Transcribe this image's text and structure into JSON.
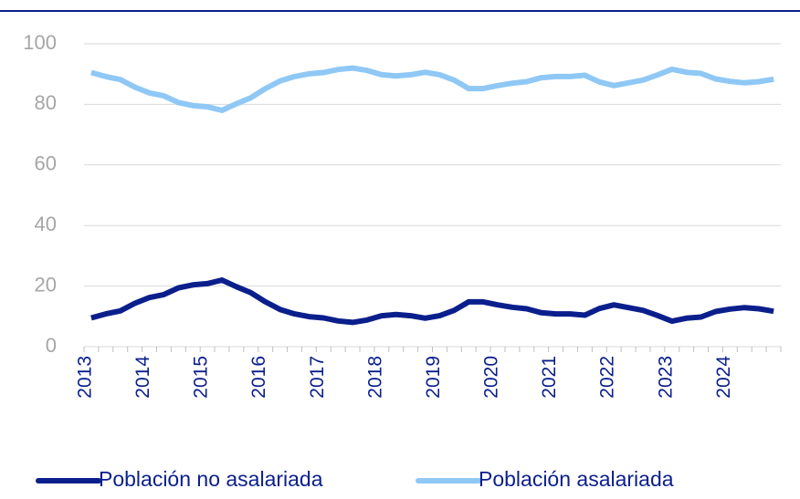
{
  "chart_data": {
    "type": "line",
    "categories": [
      "2013",
      null,
      null,
      null,
      "2014",
      null,
      null,
      null,
      "2015",
      null,
      null,
      null,
      "2016",
      null,
      null,
      null,
      "2017",
      null,
      null,
      null,
      "2018",
      null,
      null,
      null,
      "2019",
      null,
      null,
      null,
      "2020",
      null,
      null,
      null,
      "2021",
      null,
      null,
      null,
      "2022",
      null,
      null,
      null,
      "2023",
      null,
      null,
      null,
      "2024",
      null,
      null,
      null
    ],
    "series": [
      {
        "name": "Población no asalariada",
        "color": "#0b1f8c",
        "values": [
          9.5,
          10.8,
          11.8,
          14.3,
          16.2,
          17.2,
          19.4,
          20.4,
          20.8,
          22.0,
          19.8,
          17.8,
          14.8,
          12.3,
          10.8,
          9.9,
          9.5,
          8.5,
          8.0,
          8.8,
          10.2,
          10.6,
          10.2,
          9.4,
          10.2,
          12.0,
          14.8,
          14.8,
          13.8,
          13.0,
          12.5,
          11.2,
          10.8,
          10.8,
          10.4,
          12.6,
          13.8,
          12.9,
          12.0,
          10.3,
          8.4,
          9.4,
          9.8,
          11.6,
          12.4,
          12.9,
          12.5,
          11.7
        ]
      },
      {
        "name": "Población asalariada",
        "color": "#8fc8f5",
        "values": [
          90.5,
          89.2,
          88.2,
          85.7,
          83.8,
          82.8,
          80.6,
          79.6,
          79.2,
          78.0,
          80.2,
          82.2,
          85.2,
          87.7,
          89.2,
          90.1,
          90.5,
          91.5,
          92.0,
          91.2,
          89.8,
          89.4,
          89.8,
          90.6,
          89.8,
          88.0,
          85.2,
          85.2,
          86.2,
          87.0,
          87.5,
          88.8,
          89.2,
          89.2,
          89.6,
          87.4,
          86.2,
          87.1,
          88.0,
          89.7,
          91.6,
          90.6,
          90.2,
          88.4,
          87.6,
          87.1,
          87.5,
          88.3
        ]
      }
    ],
    "ylim": [
      0,
      100
    ],
    "yticks": [
      0,
      20,
      40,
      60,
      80,
      100
    ],
    "grid": true
  }
}
